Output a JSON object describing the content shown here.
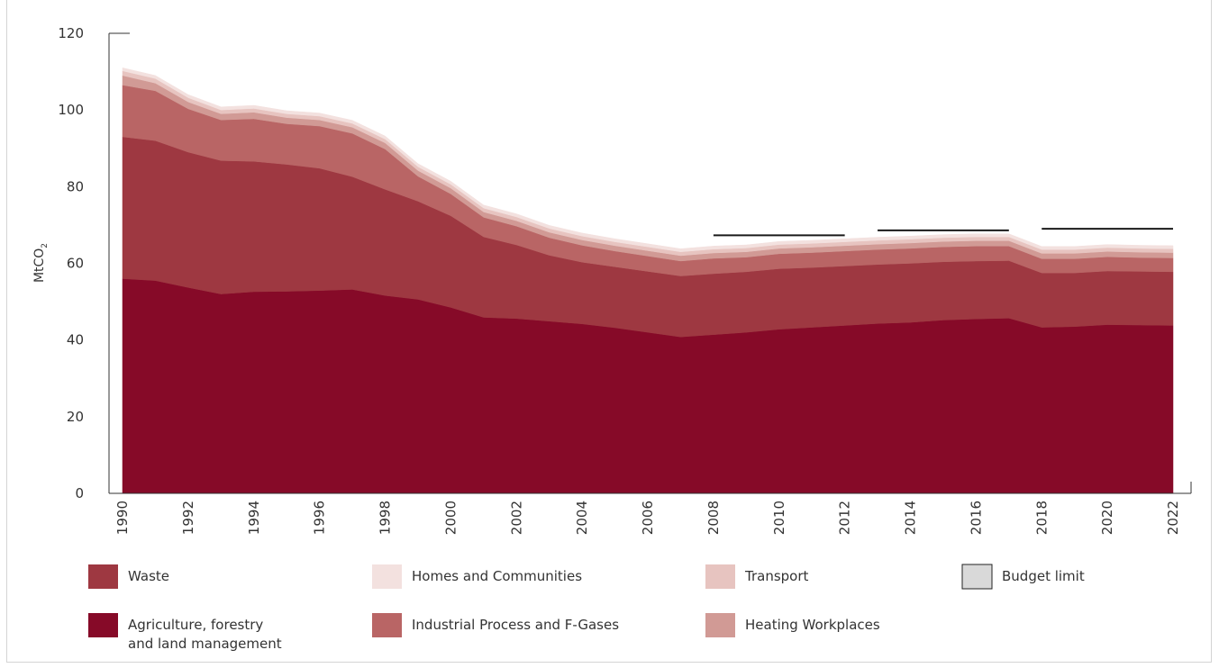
{
  "chart_data": {
    "type": "area",
    "stacked": true,
    "ylabel": "MtCO",
    "ylabel_subscript": "2",
    "ylim": [
      0,
      120
    ],
    "yticks": [
      0,
      20,
      40,
      60,
      80,
      100,
      120
    ],
    "x_tick_labels": [
      "1990",
      "1992",
      "1994",
      "1996",
      "1998",
      "2000",
      "2002",
      "2004",
      "2006",
      "2008",
      "2010",
      "2012",
      "2014",
      "2016",
      "2018",
      "2020",
      "2022"
    ],
    "x": [
      1990,
      1991,
      1992,
      1993,
      1994,
      1995,
      1996,
      1997,
      1998,
      1999,
      2000,
      2001,
      2002,
      2003,
      2004,
      2005,
      2006,
      2007,
      2008,
      2009,
      2010,
      2011,
      2012,
      2013,
      2014,
      2015,
      2016,
      2017,
      2018,
      2019,
      2020,
      2021,
      2022
    ],
    "series": [
      {
        "name": "Agriculture, forestry and land management",
        "color": "#860a28",
        "values": [
          56.0,
          55.5,
          53.7,
          52.0,
          52.6,
          52.7,
          52.9,
          53.2,
          51.6,
          50.6,
          48.5,
          45.9,
          45.6,
          44.9,
          44.2,
          43.2,
          42.0,
          40.8,
          41.4,
          42.0,
          42.8,
          43.3,
          43.8,
          44.3,
          44.6,
          45.2,
          45.5,
          45.7,
          43.3,
          43.5,
          44.0,
          43.9,
          43.8
        ]
      },
      {
        "name": "Waste",
        "color": "#9e3841",
        "values": [
          37.0,
          36.5,
          35.3,
          34.8,
          34.0,
          33.1,
          31.9,
          29.4,
          27.7,
          25.6,
          23.9,
          21.0,
          19.2,
          17.2,
          16.1,
          15.9,
          15.9,
          15.9,
          15.9,
          15.8,
          15.8,
          15.6,
          15.5,
          15.4,
          15.4,
          15.2,
          15.1,
          15.0,
          14.2,
          14.0,
          14.0,
          14.0,
          14.0
        ]
      },
      {
        "name": "Industrial Process and F-Gases",
        "color": "#b96565",
        "values": [
          13.5,
          13.0,
          11.3,
          10.6,
          11.1,
          10.6,
          11.0,
          11.3,
          10.5,
          6.5,
          5.7,
          5.1,
          4.9,
          4.6,
          4.4,
          4.1,
          4.0,
          3.9,
          4.0,
          3.8,
          3.9,
          3.9,
          3.9,
          3.9,
          3.9,
          3.9,
          3.9,
          3.8,
          3.7,
          3.7,
          3.7,
          3.6,
          3.6
        ]
      },
      {
        "name": "Heating Workplaces",
        "color": "#d19a95",
        "values": [
          2.5,
          2.0,
          1.8,
          1.6,
          1.7,
          1.6,
          1.6,
          1.6,
          1.6,
          1.5,
          1.5,
          1.4,
          1.4,
          1.4,
          1.4,
          1.4,
          1.4,
          1.4,
          1.4,
          1.4,
          1.4,
          1.4,
          1.4,
          1.4,
          1.4,
          1.4,
          1.4,
          1.4,
          1.4,
          1.4,
          1.4,
          1.4,
          1.4
        ]
      },
      {
        "name": "Transport",
        "color": "#e7c4c0",
        "values": [
          1.2,
          1.2,
          1.1,
          1.0,
          1.0,
          1.0,
          1.0,
          1.0,
          1.0,
          1.0,
          1.0,
          1.0,
          1.0,
          1.0,
          1.0,
          1.0,
          1.0,
          1.0,
          1.0,
          1.0,
          1.0,
          1.0,
          1.0,
          1.0,
          1.0,
          1.0,
          1.0,
          1.0,
          1.0,
          1.0,
          1.0,
          1.0,
          1.0
        ]
      },
      {
        "name": "Homes and Communities",
        "color": "#f3e1df",
        "values": [
          0.8,
          0.8,
          0.8,
          0.8,
          0.8,
          0.8,
          0.8,
          0.8,
          0.8,
          0.8,
          0.8,
          0.8,
          0.8,
          0.8,
          0.8,
          0.8,
          0.8,
          0.8,
          0.8,
          0.8,
          0.8,
          0.8,
          0.8,
          0.8,
          0.8,
          0.8,
          0.8,
          0.8,
          0.8,
          0.8,
          0.8,
          0.8,
          0.8
        ]
      }
    ],
    "budget_limits": [
      {
        "from": 2008,
        "to": 2012,
        "value": 67.3
      },
      {
        "from": 2013,
        "to": 2017,
        "value": 68.6
      },
      {
        "from": 2018,
        "to": 2022,
        "value": 69.0
      }
    ],
    "budget_color": "#1a1a1a",
    "legend": {
      "position": "bottom",
      "items": [
        {
          "label": "Waste",
          "color": "#9e3841"
        },
        {
          "label": "Homes and Communities",
          "color": "#f3e1df"
        },
        {
          "label": "Transport",
          "color": "#e7c4c0"
        },
        {
          "label": "Budget limit",
          "color": "#d9d9d9",
          "outlined": true
        },
        {
          "label_line1": "Agriculture, forestry",
          "label_line2": "and land management",
          "color": "#860a28"
        },
        {
          "label": "Industrial Process and F-Gases",
          "color": "#b96565"
        },
        {
          "label": "Heating Workplaces",
          "color": "#d19a95"
        }
      ]
    },
    "grid": false
  }
}
